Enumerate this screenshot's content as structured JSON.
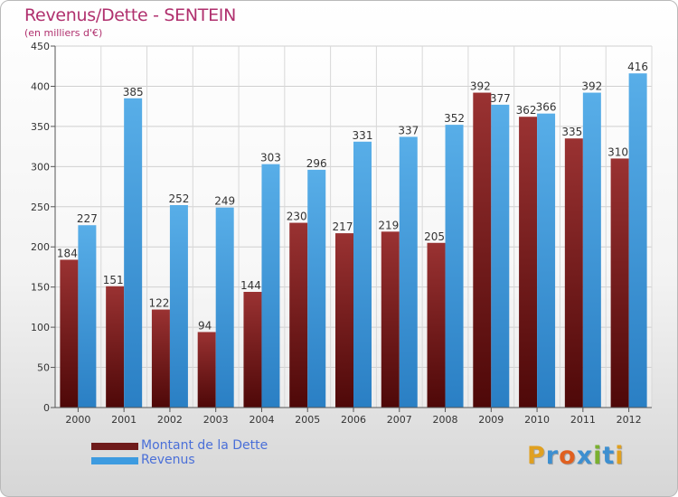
{
  "title": "Revenus/Dette - SENTEIN",
  "subtitle": "(en milliers d'€)",
  "colors": {
    "title": "#b0306e",
    "legend_text": "#4a6fd8",
    "dette": "#6e1a1a",
    "revenus": "#3d9be0"
  },
  "logo": {
    "text": "Proxiti",
    "letters": [
      {
        "ch": "P",
        "color": "#e0a020"
      },
      {
        "ch": "r",
        "color": "#3d8fd0"
      },
      {
        "ch": "o",
        "color": "#e06020"
      },
      {
        "ch": "x",
        "color": "#3d8fd0"
      },
      {
        "ch": "i",
        "color": "#7ab030"
      },
      {
        "ch": "t",
        "color": "#3d8fd0"
      },
      {
        "ch": "i",
        "color": "#e0a020"
      }
    ]
  },
  "chart_data": {
    "type": "bar",
    "title": "Revenus/Dette - SENTEIN",
    "subtitle": "(en milliers d'€)",
    "categories": [
      "2000",
      "2001",
      "2002",
      "2003",
      "2004",
      "2005",
      "2006",
      "2007",
      "2008",
      "2009",
      "2010",
      "2011",
      "2012"
    ],
    "series": [
      {
        "name": "Montant de la Dette",
        "color": "#6e1a1a",
        "values": [
          184,
          151,
          122,
          94,
          144,
          230,
          217,
          219,
          205,
          392,
          362,
          335,
          310
        ]
      },
      {
        "name": "Revenus",
        "color": "#3d9be0",
        "values": [
          227,
          385,
          252,
          249,
          303,
          296,
          331,
          337,
          352,
          377,
          366,
          392,
          416
        ]
      }
    ],
    "ylim": [
      0,
      450
    ],
    "yticks": [
      0,
      50,
      100,
      150,
      200,
      250,
      300,
      350,
      400,
      450
    ],
    "grid": true,
    "legend": "bottom-left"
  }
}
